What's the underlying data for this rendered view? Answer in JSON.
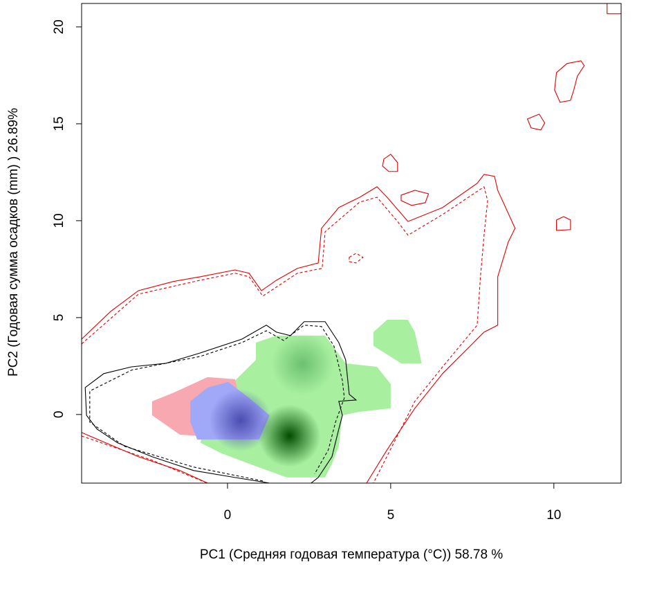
{
  "chart_data": {
    "type": "contour",
    "xlabel": "PC1 (Средняя годовая температура (°C)) 58.78 %",
    "ylabel": "PC2 (Годовая сумма осадков  (mm) ) 26.89%",
    "xlim": [
      -4.47,
      12.06
    ],
    "ylim": [
      -3.54,
      21.21
    ],
    "xticks": [
      0,
      5,
      10
    ],
    "yticks": [
      0,
      5,
      10,
      15,
      20
    ],
    "fills": [
      {
        "color": "#a8f0a0",
        "x": [
          0.23,
          0.87,
          0.87,
          1.5,
          2.99,
          3.62,
          4.58,
          5.0,
          5.0,
          4.05,
          3.52,
          3.41,
          3.2,
          2.99,
          1.82,
          0.66,
          -0.19,
          -0.83,
          -0.61
        ],
        "y": [
          1.75,
          2.82,
          3.71,
          4.07,
          4.07,
          2.64,
          2.46,
          1.57,
          0.32,
          0.14,
          -0.04,
          -1.64,
          -2.54,
          -3.25,
          -3.25,
          -2.54,
          -2.0,
          -1.46,
          -0.04
        ]
      },
      {
        "color": "#a8f0a0",
        "x": [
          4.47,
          4.89,
          5.53,
          5.74,
          5.95,
          5.32,
          4.47
        ],
        "y": [
          4.25,
          4.89,
          4.89,
          4.25,
          2.64,
          2.64,
          3.54
        ]
      },
      {
        "color": "#f8a8b0",
        "x": [
          -2.31,
          -1.67,
          -0.61,
          0.23,
          0.34,
          0.02,
          -0.83,
          -1.46,
          -2.31
        ],
        "y": [
          0.68,
          1.11,
          1.93,
          1.82,
          1.04,
          -0.04,
          -1.11,
          -1.04,
          -0.04
        ]
      },
      {
        "color": "#a0a8f8",
        "x": [
          -1.14,
          -0.61,
          0.02,
          0.66,
          1.29,
          0.97,
          -0.19,
          -0.93,
          -1.14
        ],
        "y": [
          0.68,
          1.39,
          1.68,
          0.86,
          -0.04,
          -1.29,
          -1.29,
          -1.29,
          -0.39
        ]
      }
    ],
    "peaks": [
      {
        "color": "#004d00",
        "x": 1.9,
        "y": -1.1
      },
      {
        "color": "#4c4cb0",
        "x": 0.4,
        "y": -0.3
      },
      {
        "color": "#6cc070",
        "x": 2.3,
        "y": 2.6
      }
    ],
    "lines": [
      {
        "color": "#e00000",
        "dash": false,
        "closed": false,
        "x": [
          -4.47,
          -3.58,
          -2.73,
          -1.67,
          -0.83,
          0.23,
          0.66,
          1.04,
          1.5,
          2.14,
          2.78,
          2.88,
          3.41,
          4.05,
          4.58,
          4.89,
          5.53,
          6.59,
          7.65,
          7.86,
          8.18,
          8.28,
          8.81,
          8.6,
          8.28,
          8.28,
          7.86,
          7.44,
          6.59,
          5.74,
          4.89,
          4.26
        ],
        "y": [
          3.89,
          5.32,
          6.39,
          6.86,
          7.11,
          7.46,
          7.29,
          6.39,
          6.93,
          7.54,
          7.82,
          9.61,
          10.68,
          11.21,
          11.75,
          11.21,
          9.96,
          10.68,
          11.93,
          12.39,
          12.29,
          11.57,
          9.61,
          8.89,
          7.11,
          4.61,
          4.25,
          3.54,
          2.11,
          0.32,
          -1.82,
          -3.54
        ]
      },
      {
        "color": "#e00000",
        "dash": true,
        "closed": false,
        "x": [
          -4.47,
          -2.73,
          -0.83,
          0.23,
          0.66,
          1.08,
          2.14,
          2.9,
          2.99,
          4.05,
          4.58,
          5.21,
          5.53,
          6.59,
          7.86,
          7.97,
          7.86,
          7.75,
          7.65,
          6.59,
          5.74,
          4.47
        ],
        "y": [
          3.64,
          6.21,
          6.93,
          7.29,
          7.11,
          6.11,
          7.29,
          7.54,
          9.43,
          10.96,
          11.21,
          9.96,
          9.25,
          10.32,
          11.75,
          11.04,
          9.25,
          7.11,
          4.61,
          2.46,
          0.68,
          -3.54
        ]
      },
      {
        "color": "#e00000",
        "dash": false,
        "closed": false,
        "x": [
          -4.47,
          -2.73,
          -1.46,
          -0.61
        ],
        "y": [
          -0.93,
          -2.18,
          -2.89,
          -3.54
        ]
      },
      {
        "color": "#e00000",
        "dash": true,
        "closed": false,
        "x": [
          -4.47,
          -2.31,
          -1.04,
          -0.61
        ],
        "y": [
          -1.11,
          -2.36,
          -3.25,
          -3.54
        ]
      },
      {
        "color": "#e00000",
        "dash": false,
        "closed": true,
        "x": [
          4.79,
          5.0,
          5.21,
          5.21,
          4.94,
          4.75
        ],
        "y": [
          13.18,
          13.43,
          13.0,
          12.54,
          12.54,
          12.82
        ]
      },
      {
        "color": "#e00000",
        "dash": false,
        "closed": true,
        "x": [
          5.32,
          5.74,
          6.16,
          6.06,
          5.64,
          5.32
        ],
        "y": [
          11.32,
          11.57,
          11.39,
          10.93,
          10.79,
          11.04
        ]
      },
      {
        "color": "#e00000",
        "dash": false,
        "closed": true,
        "x": [
          9.19,
          9.55,
          9.72,
          9.6,
          9.3
        ],
        "y": [
          15.25,
          15.5,
          15.04,
          14.68,
          14.79
        ]
      },
      {
        "color": "#e00000",
        "dash": false,
        "closed": true,
        "x": [
          10.08,
          10.4,
          10.83,
          10.93,
          10.72,
          10.61,
          10.51,
          10.19,
          10.02
        ],
        "y": [
          17.64,
          18.11,
          18.25,
          18.0,
          17.46,
          16.75,
          16.21,
          16.11,
          16.75
        ]
      },
      {
        "color": "#e00000",
        "dash": false,
        "closed": true,
        "x": [
          10.08,
          10.3,
          10.51,
          10.51,
          10.08
        ],
        "y": [
          10.04,
          10.21,
          10.04,
          9.54,
          9.5
        ]
      },
      {
        "color": "#e00000",
        "dash": true,
        "closed": true,
        "x": [
          3.73,
          3.94,
          4.15,
          3.94,
          3.73
        ],
        "y": [
          8.11,
          8.32,
          8.11,
          7.82,
          7.89
        ]
      },
      {
        "color": "#e00000",
        "dash": false,
        "closed": false,
        "x": [
          11.63,
          11.63,
          12.06
        ],
        "y": [
          21.21,
          20.68,
          20.68
        ]
      },
      {
        "color": "#000000",
        "dash": false,
        "closed": false,
        "x": [
          1.29,
          0.23,
          -1.04,
          -2.31,
          -3.37,
          -4.0,
          -4.32,
          -4.36,
          -3.79,
          -2.94,
          -1.89,
          -0.83,
          0.44,
          1.19,
          1.5,
          1.93,
          2.35,
          2.99,
          3.41,
          3.62,
          3.73,
          3.94,
          3.41,
          3.52,
          3.41,
          3.2,
          2.78,
          2.56
        ],
        "y": [
          -3.54,
          -3.25,
          -2.89,
          -2.18,
          -1.46,
          -0.75,
          -0.04,
          1.39,
          2.11,
          2.46,
          2.64,
          3.18,
          3.89,
          4.61,
          4.25,
          4.07,
          4.79,
          4.79,
          3.71,
          2.82,
          1.04,
          0.75,
          0.68,
          -0.04,
          -0.75,
          -2.18,
          -3.25,
          -3.54
        ]
      },
      {
        "color": "#000000",
        "dash": true,
        "closed": false,
        "x": [
          1.08,
          -1.04,
          -3.16,
          -4.22,
          -4.22,
          -2.94,
          -0.83,
          0.44,
          1.19,
          1.72,
          2.35,
          2.88,
          3.26,
          3.52,
          3.58,
          3.31,
          3.09,
          2.67
        ],
        "y": [
          -3.43,
          -2.71,
          -1.64,
          -0.39,
          1.21,
          2.29,
          3.0,
          3.71,
          4.32,
          3.82,
          4.61,
          4.54,
          3.54,
          1.75,
          0.86,
          -0.39,
          -1.82,
          -3.07
        ]
      }
    ]
  }
}
